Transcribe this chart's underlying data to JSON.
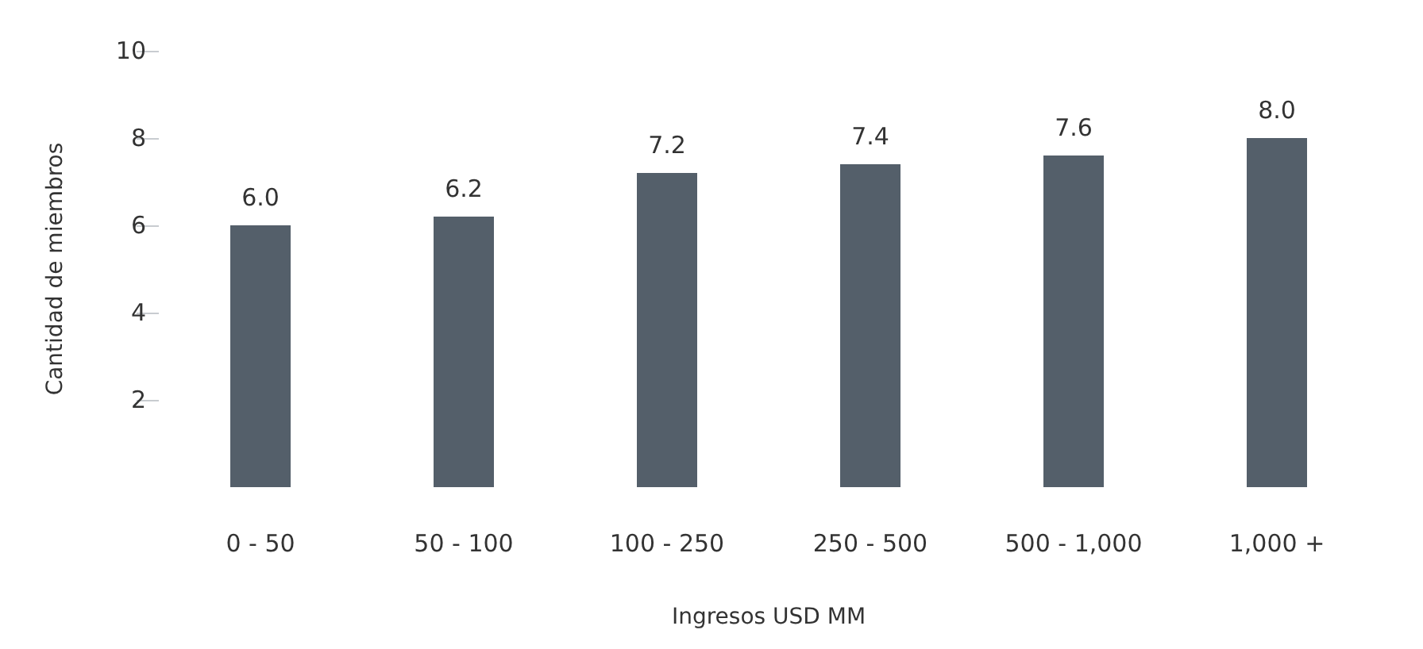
{
  "chart_data": {
    "type": "bar",
    "xlabel": "Ingresos USD MM",
    "ylabel": "Cantidad de miembros",
    "categories": [
      "0 - 50",
      "50 - 100",
      "100 - 250",
      "250 - 500",
      "500 - 1,000",
      "1,000 +"
    ],
    "values": [
      6.0,
      6.2,
      7.2,
      7.4,
      7.6,
      8.0
    ],
    "value_labels": [
      "6.0",
      "6.2",
      "7.2",
      "7.4",
      "7.6",
      "8.0"
    ],
    "color": "#545f6a",
    "ylim": [
      0,
      10
    ],
    "yticks": [
      2,
      4,
      6,
      8,
      10
    ],
    "grid": false
  }
}
